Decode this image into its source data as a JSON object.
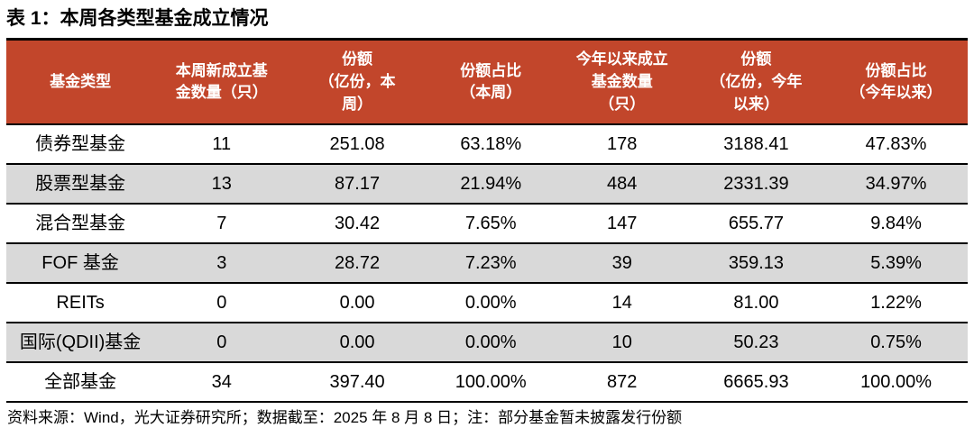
{
  "page": {
    "title": "表 1：本周各类型基金成立情况",
    "source_note": "资料来源：Wind，光大证券研究所；数据截至：2025 年 8 月 8 日；注：部分基金暂未披露发行份额"
  },
  "colors": {
    "header_bg": "#C2462B",
    "header_text": "#FFFFFF",
    "stripe_row_bg": "#D9D9D9",
    "plain_row_bg": "#FFFFFF",
    "rule_line": "#000000"
  },
  "chart_data": {
    "type": "table",
    "title": "表 1：本周各类型基金成立情况",
    "columns": [
      "基金类型",
      "本周新成立基金数量（只）",
      "份额（亿份，本周）",
      "份额占比（本周）",
      "今年以来成立基金数量（只）",
      "份额（亿份，今年以来）",
      "份额占比（今年以来）"
    ],
    "columns_display": [
      "基金类型",
      "本周新成立基\n金数量（只）",
      "份额\n（亿份，本\n周）",
      "份额占比\n（本周）",
      "今年以来成立\n基金数量\n（只）",
      "份额\n（亿份，今年\n以来）",
      "份额占比\n（今年以来）"
    ],
    "rows": [
      [
        "债券型基金",
        "11",
        "251.08",
        "63.18%",
        "178",
        "3188.41",
        "47.83%"
      ],
      [
        "股票型基金",
        "13",
        "87.17",
        "21.94%",
        "484",
        "2331.39",
        "34.97%"
      ],
      [
        "混合型基金",
        "7",
        "30.42",
        "7.65%",
        "147",
        "655.77",
        "9.84%"
      ],
      [
        "FOF 基金",
        "3",
        "28.72",
        "7.23%",
        "39",
        "359.13",
        "5.39%"
      ],
      [
        "REITs",
        "0",
        "0.00",
        "0.00%",
        "14",
        "81.00",
        "1.22%"
      ],
      [
        "国际(QDII)基金",
        "0",
        "0.00",
        "0.00%",
        "10",
        "50.23",
        "0.75%"
      ],
      [
        "全部基金",
        "34",
        "397.40",
        "100.00%",
        "872",
        "6665.93",
        "100.00%"
      ]
    ],
    "layout_hints": {
      "striped_rows": "rows 2, 4, 6 have gray background",
      "alignment": "all cells center-aligned",
      "grid": "horizontal black rules only, no vertical rules"
    }
  }
}
